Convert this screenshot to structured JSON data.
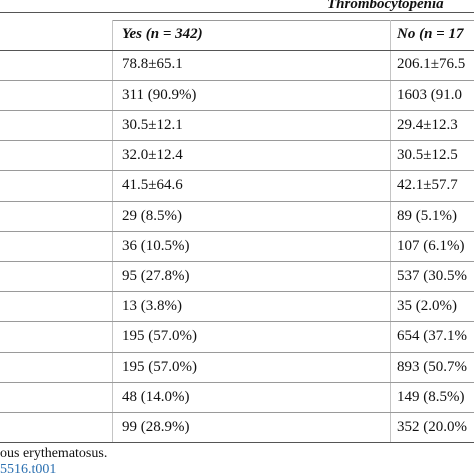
{
  "table": {
    "group_header": "Thrombocytopenia",
    "columns": [
      "Yes (n = 342)",
      "No (n = 17"
    ],
    "rows": [
      {
        "yes": "78.8±65.1",
        "no": "206.1±76.5"
      },
      {
        "yes": "311 (90.9%)",
        "no": "1603 (91.0"
      },
      {
        "yes": "30.5±12.1",
        "no": "29.4±12.3"
      },
      {
        "yes": "32.0±12.4",
        "no": "30.5±12.5"
      },
      {
        "yes": "41.5±64.6",
        "no": "42.1±57.7"
      },
      {
        "yes": "29 (8.5%)",
        "no": "89 (5.1%)"
      },
      {
        "yes": "36 (10.5%)",
        "no": "107 (6.1%)"
      },
      {
        "yes": "95 (27.8%)",
        "no": "537 (30.5%"
      },
      {
        "yes": "13 (3.8%)",
        "no": "35 (2.0%)"
      },
      {
        "yes": "195 (57.0%)",
        "no": "654 (37.1%"
      },
      {
        "yes": "195 (57.0%)",
        "no": "893 (50.7%"
      },
      {
        "yes": "48 (14.0%)",
        "no": "149 (8.5%)"
      },
      {
        "yes": "99 (28.9%)",
        "no": "352 (20.0%"
      }
    ]
  },
  "footnote": "ous erythematosus.",
  "doi_fragment": "5516.t001"
}
